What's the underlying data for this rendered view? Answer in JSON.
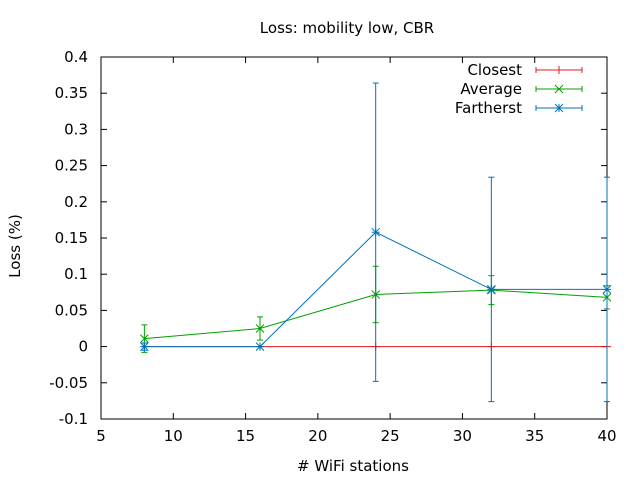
{
  "chart_data": {
    "type": "line",
    "title": "Loss: mobility low, CBR",
    "xlabel": "# WiFi stations",
    "ylabel": "Loss (%)",
    "xlim": [
      5,
      40
    ],
    "ylim": [
      -0.1,
      0.4
    ],
    "xticks": [
      "5",
      "10",
      "15",
      "20",
      "25",
      "30",
      "35",
      "40"
    ],
    "yticks": [
      "-0.1",
      "-0.05",
      "0",
      "0.05",
      "0.1",
      "0.15",
      "0.2",
      "0.25",
      "0.3",
      "0.35",
      "0.4"
    ],
    "legend_position": "top-right",
    "grid": false,
    "series": [
      {
        "name": "Closest",
        "color": "#e41a1c",
        "marker": "plus",
        "x": [
          8,
          16,
          24,
          32,
          40
        ],
        "y": [
          0,
          0,
          0,
          0,
          0
        ],
        "err": [
          0,
          0,
          0,
          0,
          0
        ]
      },
      {
        "name": "Average",
        "color": "#00a000",
        "marker": "cross",
        "x": [
          8,
          16,
          24,
          32,
          40
        ],
        "y": [
          0.011,
          0.025,
          0.072,
          0.078,
          0.068
        ],
        "err": [
          0.019,
          0.016,
          0.039,
          0.02,
          0.016
        ]
      },
      {
        "name": "Fartherst",
        "color": "#0072bd",
        "marker": "star",
        "x": [
          8,
          16,
          24,
          32,
          40
        ],
        "y": [
          0,
          0,
          0.158,
          0.079,
          0.079
        ],
        "err": [
          0.005,
          0,
          0.206,
          0.155,
          0.155
        ]
      }
    ]
  }
}
